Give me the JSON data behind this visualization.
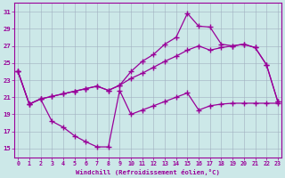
{
  "bg_color": "#cce8e8",
  "grid_color": "#a0b0c0",
  "line_color": "#990099",
  "xlabel": "Windchill (Refroidissement éolien,°C)",
  "ylim": [
    14,
    32
  ],
  "xlim": [
    -0.3,
    23.3
  ],
  "yticks": [
    15,
    17,
    19,
    21,
    23,
    25,
    27,
    29,
    31
  ],
  "xticks": [
    0,
    1,
    2,
    3,
    4,
    5,
    6,
    7,
    8,
    9,
    10,
    11,
    12,
    13,
    14,
    15,
    16,
    17,
    18,
    19,
    20,
    21,
    22,
    23
  ],
  "curveA_x": [
    0,
    1,
    2,
    3,
    4,
    5,
    6,
    7,
    8,
    9,
    10,
    11,
    12,
    13,
    14,
    15,
    16,
    17,
    18,
    19,
    20,
    21,
    22,
    23
  ],
  "curveA_y": [
    24.0,
    20.2,
    20.8,
    21.1,
    21.4,
    21.7,
    22.0,
    22.3,
    21.8,
    22.4,
    23.2,
    23.8,
    24.5,
    25.2,
    25.8,
    26.5,
    27.0,
    26.5,
    26.8,
    27.0,
    27.2,
    26.8,
    24.8,
    20.5
  ],
  "curveB_x": [
    0,
    1,
    2,
    3,
    4,
    5,
    6,
    7,
    8,
    9,
    10,
    11,
    12,
    13,
    14,
    15,
    16,
    17,
    18,
    19,
    20,
    21,
    22,
    23
  ],
  "curveB_y": [
    24.0,
    20.2,
    20.8,
    21.1,
    21.4,
    21.7,
    22.0,
    22.3,
    21.8,
    22.4,
    24.0,
    25.2,
    26.0,
    27.2,
    28.0,
    30.8,
    29.3,
    29.2,
    27.2,
    27.0,
    27.2,
    26.8,
    24.8,
    20.5
  ],
  "curveC_x": [
    0,
    1,
    2,
    3,
    4,
    5,
    6,
    7,
    8,
    9,
    10,
    11,
    12,
    13,
    14,
    15,
    16,
    17,
    18,
    19,
    20,
    21,
    22,
    23
  ],
  "curveC_y": [
    24.0,
    20.2,
    20.8,
    18.2,
    17.5,
    16.5,
    15.8,
    15.2,
    15.2,
    21.8,
    19.0,
    19.5,
    20.0,
    20.5,
    21.0,
    21.5,
    19.5,
    20.0,
    20.2,
    20.3,
    20.3,
    20.3,
    20.3,
    20.3
  ]
}
